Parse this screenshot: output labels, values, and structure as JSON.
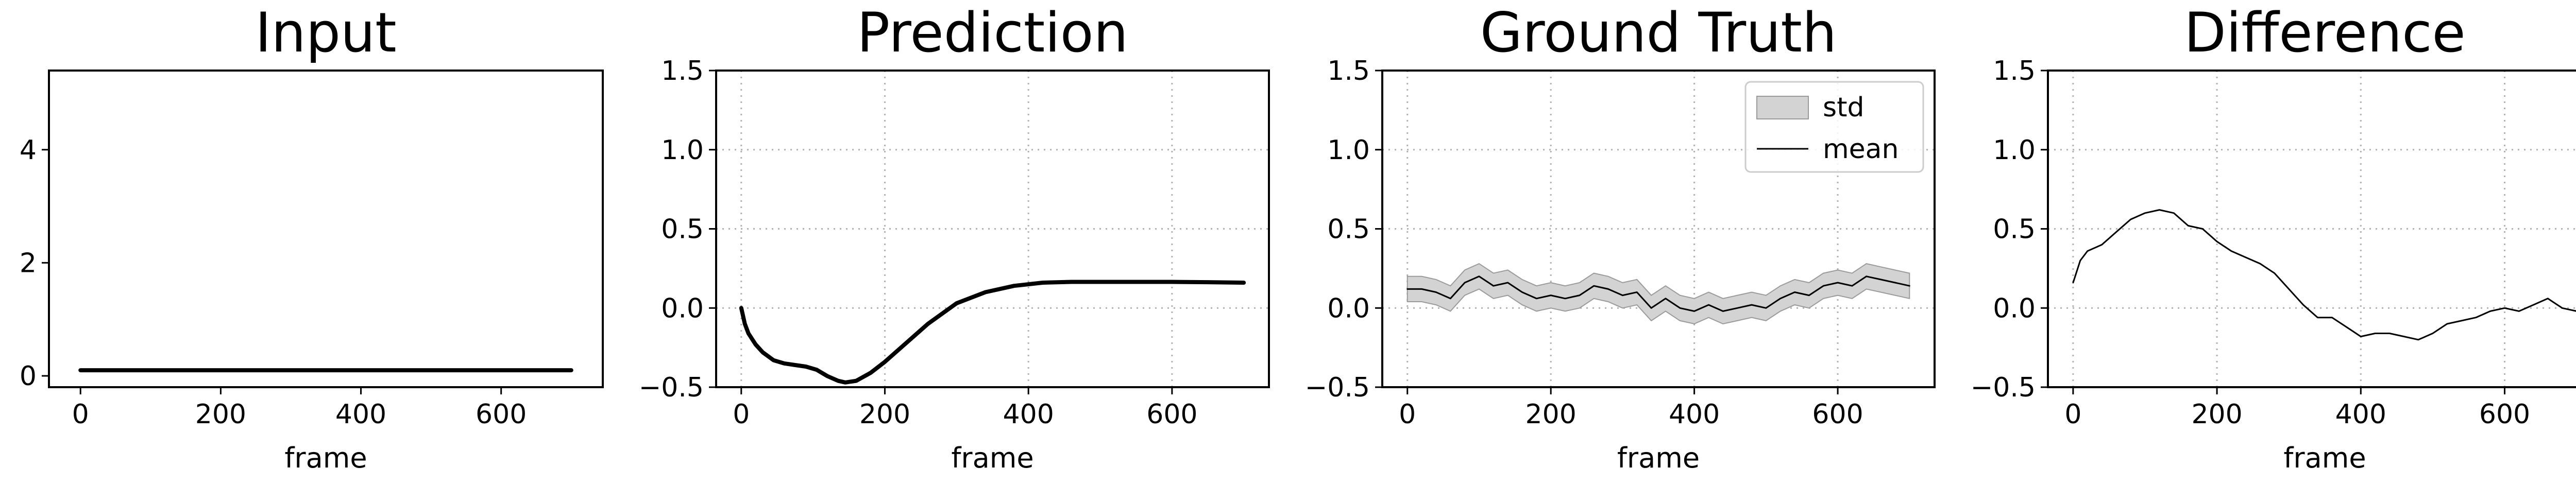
{
  "colors": {
    "line": "#000000",
    "std_fill": "#d3d3d3",
    "std_edge": "#9a9a9a",
    "grid": "#b0b0b0"
  },
  "chart_data": [
    {
      "type": "line",
      "title": "Input",
      "xlabel": "frame",
      "ylabel": "",
      "xlim": [
        -45,
        745
      ],
      "ylim": [
        -0.2,
        5.4
      ],
      "xticks": [
        0,
        200,
        400,
        600
      ],
      "yticks": [
        0,
        2,
        4
      ],
      "grid": false,
      "legend": null,
      "series": [
        {
          "style": "thick",
          "x": [
            0,
            700
          ],
          "y": [
            0.1,
            0.1
          ]
        }
      ]
    },
    {
      "type": "line",
      "title": "Prediction",
      "xlabel": "frame",
      "ylabel": "",
      "xlim": [
        -35,
        735
      ],
      "ylim": [
        -0.5,
        1.5
      ],
      "xticks": [
        0,
        200,
        400,
        600
      ],
      "yticks": [
        -0.5,
        0.0,
        0.5,
        1.0,
        1.5
      ],
      "grid": true,
      "legend": null,
      "series": [
        {
          "style": "thick",
          "x": [
            0,
            5,
            10,
            20,
            30,
            45,
            60,
            75,
            90,
            105,
            120,
            135,
            145,
            160,
            180,
            200,
            230,
            260,
            300,
            340,
            380,
            420,
            460,
            500,
            550,
            600,
            650,
            700
          ],
          "y": [
            0.0,
            -0.1,
            -0.16,
            -0.23,
            -0.28,
            -0.33,
            -0.35,
            -0.36,
            -0.37,
            -0.39,
            -0.43,
            -0.46,
            -0.47,
            -0.46,
            -0.41,
            -0.34,
            -0.22,
            -0.1,
            0.03,
            0.1,
            0.14,
            0.16,
            0.165,
            0.165,
            0.165,
            0.165,
            0.163,
            0.16
          ]
        }
      ]
    },
    {
      "type": "area",
      "title": "Ground Truth",
      "xlabel": "frame",
      "ylabel": "",
      "xlim": [
        -35,
        735
      ],
      "ylim": [
        -0.5,
        1.5
      ],
      "xticks": [
        0,
        200,
        400,
        600
      ],
      "yticks": [
        -0.5,
        0.0,
        0.5,
        1.0,
        1.5
      ],
      "grid": true,
      "legend": {
        "position": "top-right",
        "entries": [
          "std",
          "mean"
        ]
      },
      "band_halfwidth": 0.08,
      "series": [
        {
          "name": "mean",
          "style": "thin-band",
          "x": [
            0,
            20,
            40,
            60,
            80,
            100,
            120,
            140,
            160,
            180,
            200,
            220,
            240,
            260,
            280,
            300,
            320,
            340,
            360,
            380,
            400,
            420,
            440,
            460,
            480,
            500,
            520,
            540,
            560,
            580,
            600,
            620,
            640,
            660,
            680,
            700
          ],
          "y": [
            0.12,
            0.12,
            0.1,
            0.06,
            0.16,
            0.2,
            0.14,
            0.16,
            0.1,
            0.06,
            0.08,
            0.06,
            0.08,
            0.14,
            0.12,
            0.08,
            0.1,
            0.0,
            0.06,
            0.0,
            -0.02,
            0.02,
            -0.02,
            0.0,
            0.02,
            0.0,
            0.06,
            0.1,
            0.08,
            0.14,
            0.16,
            0.14,
            0.2,
            0.18,
            0.16,
            0.14
          ]
        }
      ]
    },
    {
      "type": "line",
      "title": "Difference",
      "xlabel": "frame",
      "ylabel": "",
      "xlim": [
        -35,
        735
      ],
      "ylim": [
        -0.5,
        1.5
      ],
      "xticks": [
        0,
        200,
        400,
        600
      ],
      "yticks": [
        -0.5,
        0.0,
        0.5,
        1.0,
        1.5
      ],
      "grid": true,
      "legend": null,
      "series": [
        {
          "style": "thin",
          "x": [
            0,
            10,
            20,
            40,
            60,
            80,
            100,
            120,
            140,
            160,
            180,
            200,
            220,
            240,
            260,
            280,
            300,
            320,
            340,
            360,
            380,
            400,
            420,
            440,
            460,
            480,
            500,
            520,
            540,
            560,
            580,
            600,
            620,
            640,
            660,
            680,
            700
          ],
          "y": [
            0.16,
            0.3,
            0.36,
            0.4,
            0.48,
            0.56,
            0.6,
            0.62,
            0.6,
            0.52,
            0.5,
            0.42,
            0.36,
            0.32,
            0.28,
            0.22,
            0.12,
            0.02,
            -0.06,
            -0.06,
            -0.12,
            -0.18,
            -0.16,
            -0.16,
            -0.18,
            -0.2,
            -0.16,
            -0.1,
            -0.08,
            -0.06,
            -0.02,
            0.0,
            -0.02,
            0.02,
            0.06,
            0.0,
            -0.02
          ]
        }
      ]
    }
  ]
}
